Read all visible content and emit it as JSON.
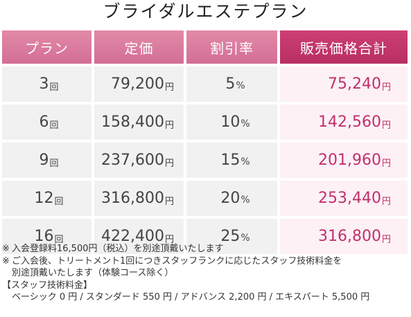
{
  "title": "ブライダルエステプラン",
  "headers": [
    "プラン",
    "定価",
    "割引率",
    "販売価格合計"
  ],
  "rows": [
    {
      "plan": "3",
      "plan_unit": "回",
      "price": "79,200",
      "price_unit": "円",
      "rate": "5",
      "rate_unit": "%",
      "sale": "75,240",
      "sale_unit": "円"
    },
    {
      "plan": "6",
      "plan_unit": "回",
      "price": "158,400",
      "price_unit": "円",
      "rate": "10",
      "rate_unit": "%",
      "sale": "142,560",
      "sale_unit": "円"
    },
    {
      "plan": "9",
      "plan_unit": "回",
      "price": "237,600",
      "price_unit": "円",
      "rate": "15",
      "rate_unit": "%",
      "sale": "201,960",
      "sale_unit": "円"
    },
    {
      "plan": "12",
      "plan_unit": "回",
      "price": "316,800",
      "price_unit": "円",
      "rate": "20",
      "rate_unit": "%",
      "sale": "253,440",
      "sale_unit": "円"
    },
    {
      "plan": "16",
      "plan_unit": "回",
      "price": "422,400",
      "price_unit": "円",
      "rate": "25",
      "rate_unit": "%",
      "sale": "316,800",
      "sale_unit": "円"
    }
  ],
  "notes": {
    "mark": "※",
    "note1": "入会登録料16,500円（税込）を別途頂戴いたします",
    "note2_line1": "ご入会後、トリートメント1回につきスタッフランクに応じたスタッフ技術料金を",
    "note2_line2": "別途頂戴いたします（体験コース除く）",
    "fee_heading": "【スタッフ技術料金】",
    "fee_list": "ベーシック 0 円 / スタンダード 550 円 / アドバンス 2,200 円 / エキスパート 5,500 円"
  },
  "colors": {
    "header_pink": "#d9799d",
    "header_accent": "#c03a6c",
    "cell_gray": "#f1f1f1",
    "sale_bg": "#fdf1f5",
    "sale_text": "#c0306a"
  }
}
